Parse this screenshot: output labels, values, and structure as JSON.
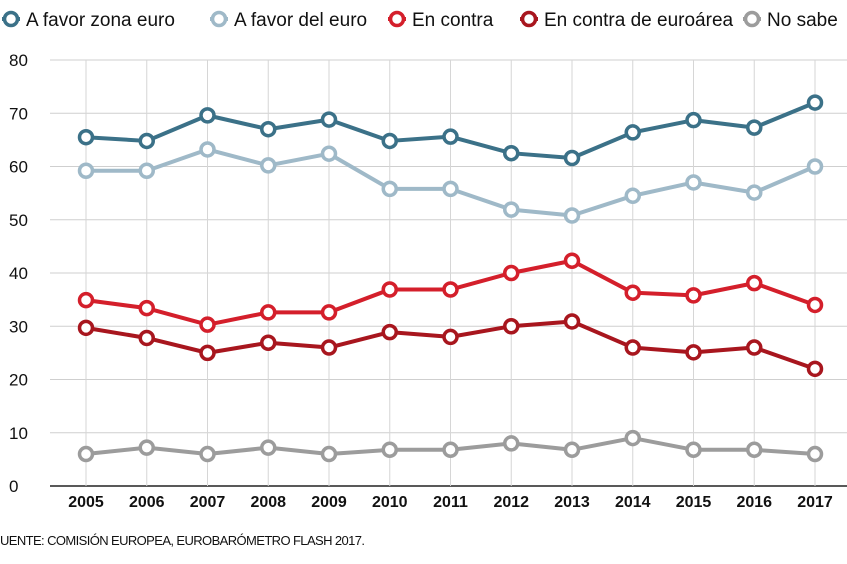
{
  "chart_data": {
    "type": "line",
    "title": "",
    "xlabel": "",
    "ylabel": "",
    "categories": [
      "2005",
      "2006",
      "2007",
      "2008",
      "2009",
      "2010",
      "2011",
      "2012",
      "2013",
      "2014",
      "2015",
      "2016",
      "2017"
    ],
    "ylim": [
      0,
      80
    ],
    "yticks": [
      "0",
      "10",
      "20",
      "30",
      "40",
      "50",
      "60",
      "70",
      "80"
    ],
    "grid": true,
    "legend_position": "top",
    "series": [
      {
        "name": "A favor zona euro",
        "color": "#3b7188",
        "values": [
          65.5,
          64.8,
          69.6,
          67,
          68.8,
          64.8,
          65.6,
          62.5,
          61.6,
          66.4,
          68.7,
          67.3,
          72
        ]
      },
      {
        "name": "A favor del euro",
        "color": "#9fb9c8",
        "values": [
          59.2,
          59.2,
          63.2,
          60.2,
          62.4,
          55.8,
          55.8,
          51.9,
          50.8,
          54.5,
          57,
          55.1,
          60
        ]
      },
      {
        "name": "En contra",
        "color": "#d41f2b",
        "values": [
          34.9,
          33.4,
          30.3,
          32.6,
          32.6,
          36.9,
          36.9,
          40,
          42.3,
          36.3,
          35.8,
          38.1,
          34
        ]
      },
      {
        "name": "En contra de euroárea",
        "color": "#a8161e",
        "values": [
          29.7,
          27.8,
          25,
          26.9,
          26,
          28.9,
          28,
          30,
          30.9,
          26,
          25.1,
          26,
          22
        ]
      },
      {
        "name": "No sabe",
        "color": "#9c9c9c",
        "values": [
          6,
          7.2,
          6,
          7.2,
          6,
          6.8,
          6.8,
          8,
          6.8,
          9,
          6.8,
          6.8,
          6
        ]
      }
    ]
  },
  "source": "UENTE: COMISIÓN EUROPEA, EUROBARÓMETRO FLASH 2017."
}
